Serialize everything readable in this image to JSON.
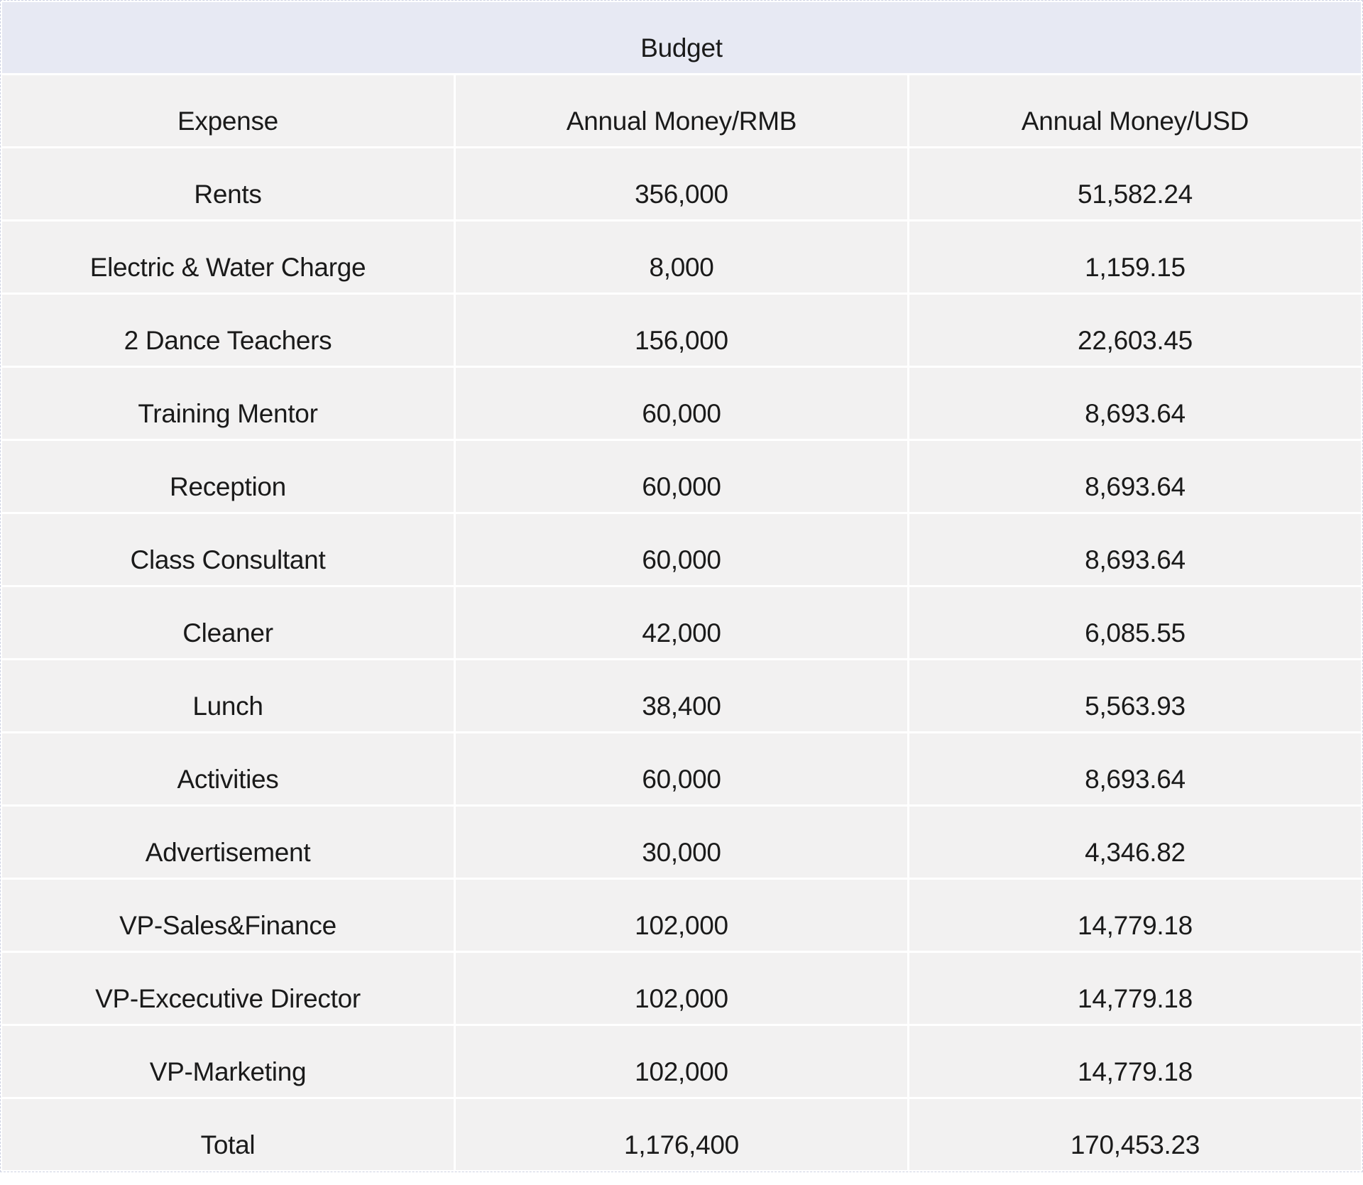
{
  "table": {
    "title": "Budget",
    "columns": {
      "expense": "Expense",
      "rmb": "Annual Money/RMB",
      "usd": "Annual Money/USD"
    },
    "rows": [
      {
        "expense": "Rents",
        "rmb": "356,000",
        "usd": "51,582.24"
      },
      {
        "expense": "Electric & Water Charge",
        "rmb": "8,000",
        "usd": "1,159.15"
      },
      {
        "expense": "2 Dance Teachers",
        "rmb": "156,000",
        "usd": "22,603.45"
      },
      {
        "expense": "Training Mentor",
        "rmb": "60,000",
        "usd": "8,693.64"
      },
      {
        "expense": "Reception",
        "rmb": "60,000",
        "usd": "8,693.64"
      },
      {
        "expense": "Class Consultant",
        "rmb": "60,000",
        "usd": "8,693.64"
      },
      {
        "expense": "Cleaner",
        "rmb": "42,000",
        "usd": "6,085.55"
      },
      {
        "expense": "Lunch",
        "rmb": "38,400",
        "usd": "5,563.93"
      },
      {
        "expense": "Activities",
        "rmb": "60,000",
        "usd": "8,693.64"
      },
      {
        "expense": "Advertisement",
        "rmb": "30,000",
        "usd": "4,346.82"
      },
      {
        "expense": "VP-Sales&Finance",
        "rmb": "102,000",
        "usd": "14,779.18"
      },
      {
        "expense": "VP-Excecutive Director",
        "rmb": "102,000",
        "usd": "14,779.18"
      },
      {
        "expense": "VP-Marketing",
        "rmb": "102,000",
        "usd": "14,779.18"
      },
      {
        "expense": "Total",
        "rmb": "1,176,400",
        "usd": "170,453.23"
      }
    ],
    "colors": {
      "title_bg": "#e7e9f3",
      "row_bg": "#f2f1f1",
      "text": "#1a1a1a",
      "separator": "#ffffff"
    }
  }
}
